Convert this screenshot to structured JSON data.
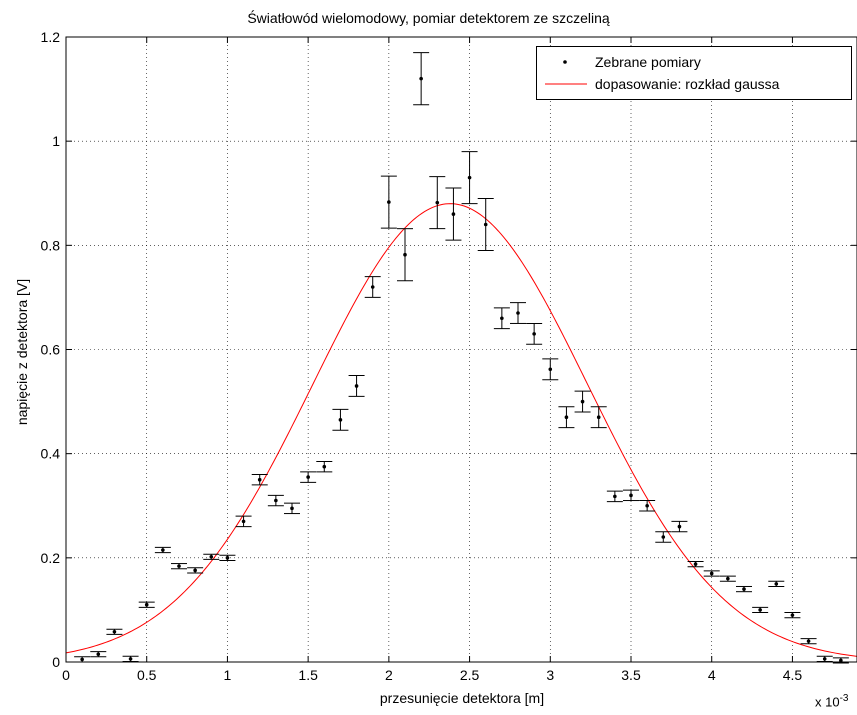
{
  "chart_data": {
    "type": "scatter",
    "title": "Światłowód wielomodowy, pomiar detektorem ze szczeliną",
    "xlabel": "przesunięcie detektora [m]",
    "ylabel": "napięcie z detektora [V]",
    "x_multiplier": "x 10",
    "x_multiplier_exp": "-3",
    "xlim": [
      0,
      4.9
    ],
    "ylim": [
      0,
      1.2
    ],
    "xticks": [
      0,
      0.5,
      1,
      1.5,
      2,
      2.5,
      3,
      3.5,
      4,
      4.5
    ],
    "xtick_labels": [
      "0",
      "0.5",
      "1",
      "1.5",
      "2",
      "2.5",
      "3",
      "3.5",
      "4",
      "4.5"
    ],
    "yticks": [
      0,
      0.2,
      0.4,
      0.6,
      0.8,
      1,
      1.2
    ],
    "ytick_labels": [
      "0",
      "0.2",
      "0.4",
      "0.6",
      "0.8",
      "1",
      "1.2"
    ],
    "grid": true,
    "legend_position": "top-right",
    "legend": [
      "Zebrane pomiary",
      "dopasowanie: rozkład gaussa"
    ],
    "colors": {
      "points": "#000000",
      "fit": "#ff0000",
      "axes": "#000000",
      "grid": "#000000"
    },
    "series": [
      {
        "name": "Zebrane pomiary",
        "type": "errorbar",
        "x": [
          0.1,
          0.2,
          0.3,
          0.4,
          0.5,
          0.6,
          0.7,
          0.8,
          0.9,
          1.0,
          1.1,
          1.2,
          1.3,
          1.4,
          1.5,
          1.6,
          1.7,
          1.8,
          1.9,
          2.0,
          2.1,
          2.2,
          2.3,
          2.4,
          2.5,
          2.6,
          2.7,
          2.8,
          2.9,
          3.0,
          3.1,
          3.2,
          3.3,
          3.4,
          3.5,
          3.6,
          3.7,
          3.8,
          3.9,
          4.0,
          4.1,
          4.2,
          4.3,
          4.4,
          4.5,
          4.6,
          4.7,
          4.8
        ],
        "y": [
          0.005,
          0.015,
          0.058,
          0.006,
          0.11,
          0.215,
          0.184,
          0.176,
          0.202,
          0.2,
          0.27,
          0.35,
          0.31,
          0.295,
          0.355,
          0.375,
          0.465,
          0.53,
          0.72,
          0.883,
          0.782,
          1.12,
          0.882,
          0.86,
          0.93,
          0.84,
          0.66,
          0.67,
          0.63,
          0.562,
          0.47,
          0.5,
          0.47,
          0.318,
          0.32,
          0.3,
          0.24,
          0.26,
          0.188,
          0.17,
          0.16,
          0.14,
          0.1,
          0.15,
          0.09,
          0.04,
          0.006,
          0.003
        ],
        "err": [
          0.005,
          0.005,
          0.005,
          0.005,
          0.005,
          0.005,
          0.005,
          0.005,
          0.005,
          0.005,
          0.01,
          0.01,
          0.01,
          0.01,
          0.01,
          0.01,
          0.02,
          0.02,
          0.02,
          0.05,
          0.05,
          0.05,
          0.05,
          0.05,
          0.05,
          0.05,
          0.02,
          0.02,
          0.02,
          0.02,
          0.02,
          0.02,
          0.02,
          0.01,
          0.01,
          0.01,
          0.01,
          0.01,
          0.005,
          0.005,
          0.005,
          0.005,
          0.005,
          0.005,
          0.005,
          0.005,
          0.005,
          0.005
        ]
      },
      {
        "name": "dopasowanie: rozkład gaussa",
        "type": "line",
        "model": "gaussian",
        "amplitude": 0.88,
        "center": 2.38,
        "sigma": 0.85
      }
    ]
  }
}
